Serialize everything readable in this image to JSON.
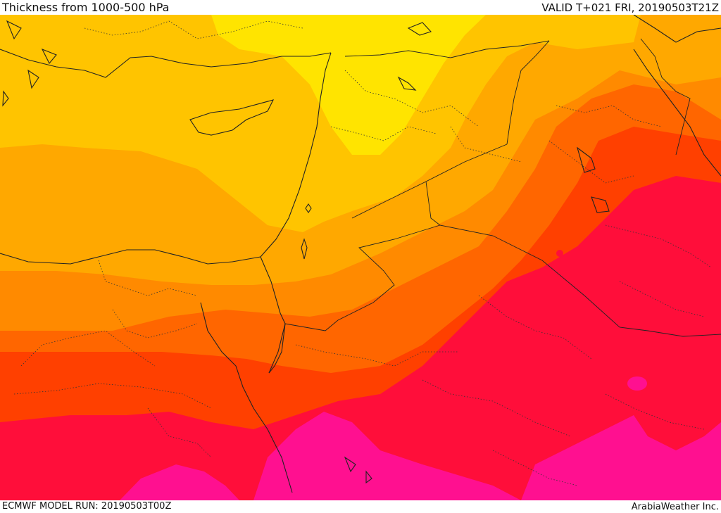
{
  "header": {
    "title": "Thickness from 1000-500 hPa",
    "valid": "VALID T+021 FRI, 20190503T21Z"
  },
  "footer": {
    "model_run": "ECMWF MODEL RUN: 20190503T00Z",
    "credit": "ArabiaWeather Inc."
  },
  "colors": {
    "band_1": "#ffe400",
    "band_2": "#ffc400",
    "band_3": "#ffa800",
    "band_4": "#ff8a00",
    "band_5": "#ff6600",
    "band_6": "#ff4000",
    "band_7": "#ff0e3a",
    "band_8": "#ff1090"
  }
}
